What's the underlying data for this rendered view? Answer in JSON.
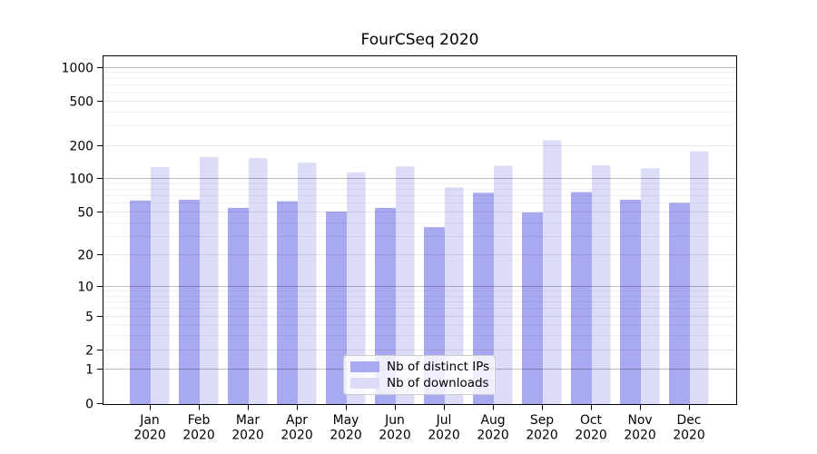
{
  "chart_data": {
    "type": "bar",
    "title": "FourCSeq 2020",
    "categories": [
      "Jan",
      "Feb",
      "Mar",
      "Apr",
      "May",
      "Jun",
      "Jul",
      "Aug",
      "Sep",
      "Oct",
      "Nov",
      "Dec"
    ],
    "year_label": "2020",
    "series": [
      {
        "name": "Nb of distinct IPs",
        "color": "#a9a9f2",
        "values": [
          63,
          64,
          54,
          62,
          50,
          54,
          36,
          74,
          49,
          75,
          64,
          60
        ]
      },
      {
        "name": "Nb of downloads",
        "color": "#dcdcf8",
        "values": [
          126,
          156,
          152,
          138,
          113,
          128,
          83,
          130,
          220,
          131,
          123,
          175
        ]
      }
    ],
    "y_ticks": [
      0,
      1,
      2,
      5,
      10,
      20,
      50,
      100,
      200,
      500,
      1000
    ],
    "y_scale": "log1p",
    "ylim": [
      0,
      1270
    ],
    "xlabel": "",
    "ylabel": "",
    "grid": "on",
    "legend_position": "lower-center-inside"
  }
}
